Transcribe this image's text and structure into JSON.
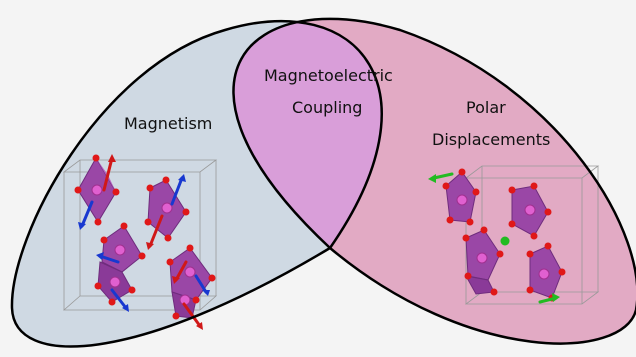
{
  "labels": {
    "left": "Magnetism",
    "center_line1": "Magnetoelectric",
    "center_line2": "Coupling",
    "right_line1": "Polar",
    "right_line2": "Displacements"
  },
  "colors": {
    "background": "#f4f4f4",
    "left_region": "#cfd9e3",
    "right_region": "#e2aac4",
    "overlap_region": "#d99ed9",
    "outline": "#000000",
    "octahedron": "#9a47a6",
    "octahedron_face_light": "#b765c2",
    "octahedron_face_dark": "#6f2c7d",
    "central_atom": "#e060d0",
    "oxygen_atom": "#e01818",
    "spin_up_arrow": "#d01818",
    "spin_down_arrow": "#1838d0",
    "displacement_arrow": "#22bb22"
  },
  "icons": [
    "octahedron-crystal-structure",
    "spin-arrow",
    "displacement-arrow"
  ]
}
